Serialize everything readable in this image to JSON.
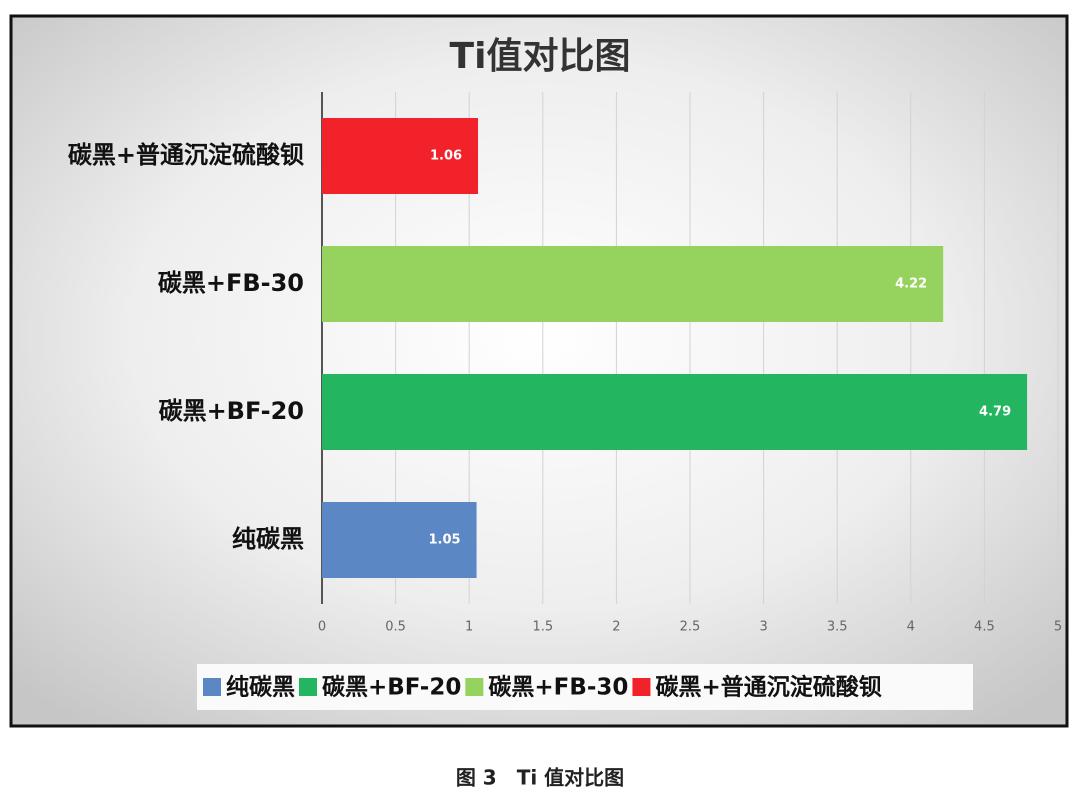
{
  "chart_data": {
    "type": "hbar",
    "title": "Ti值对比图",
    "categories": [
      "纯碳黑",
      "碳黑+BF-20",
      "碳黑+FB-30",
      "碳黑+普通沉淀硫酸钡"
    ],
    "values": [
      1.05,
      4.79,
      4.22,
      1.06
    ],
    "colors": [
      "#5b87c4",
      "#23b55f",
      "#96d35e",
      "#f2222a"
    ],
    "xlim": [
      0,
      5
    ],
    "xticks": [
      0,
      0.5,
      1,
      1.5,
      2,
      2.5,
      3,
      3.5,
      4,
      4.5,
      5
    ],
    "grid": true,
    "legend": "bottom"
  },
  "caption": "图 3　Ti 值对比图"
}
